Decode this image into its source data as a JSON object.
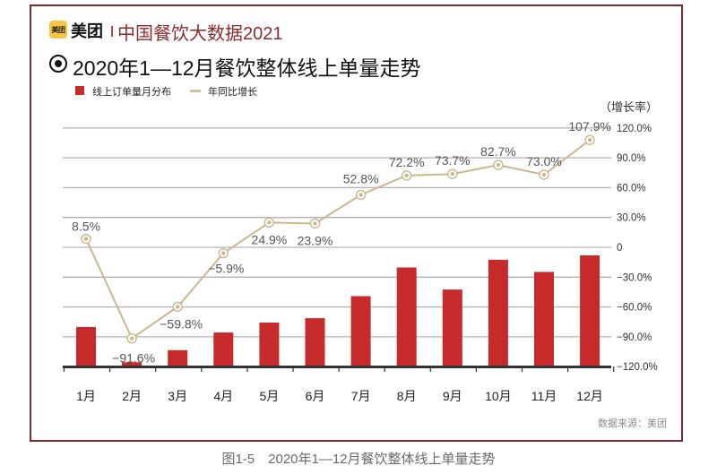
{
  "header": {
    "logo_badge": "美团",
    "brand": "美团",
    "series_title": "中国餐饮大数据2021",
    "accent_color": "#8b2a2f",
    "logo_color": "#f6c543"
  },
  "figure": {
    "title_icon": "radio-dot-icon",
    "title": "2020年1—12月餐饮整体线上单量走势",
    "source": "数据来源：美团",
    "caption": "图1-5　2020年1—12月餐饮整体线上单量走势"
  },
  "chart_data": {
    "type": "bar",
    "title": "2020年1—12月餐饮整体线上单量走势",
    "xlabel": "",
    "ylabel": "",
    "y2label": "（增长率）",
    "categories": [
      "1月",
      "2月",
      "3月",
      "4月",
      "5月",
      "6月",
      "7月",
      "8月",
      "9月",
      "10月",
      "11月",
      "12月"
    ],
    "series": [
      {
        "name": "线上订单量月分布",
        "type": "bar",
        "axis": "none",
        "unit": "relative index (12月 = 100, no scale shown)",
        "values": [
          35,
          3,
          14,
          30,
          39,
          43,
          63,
          89,
          69,
          96,
          85,
          100
        ],
        "color": "#c62a2a"
      },
      {
        "name": "年同比增长",
        "type": "line",
        "axis": "right",
        "unit": "%",
        "values": [
          8.5,
          -91.6,
          -59.8,
          -5.9,
          24.9,
          23.9,
          52.8,
          72.2,
          73.7,
          82.7,
          73.0,
          107.9
        ],
        "labels": [
          "8.5%",
          "−91.6%",
          "−59.8%",
          "−5.9%",
          "24.9%",
          "23.9%",
          "52.8%",
          "72.2%",
          "73.7%",
          "82.7%",
          "73.0%",
          "107.9%"
        ],
        "color": "#c8b88e"
      }
    ],
    "y2lim": [
      -120,
      120
    ],
    "y2ticks": [
      120,
      90,
      60,
      30,
      0,
      -30,
      -60,
      -90,
      -120
    ],
    "y2tick_labels": [
      "120.0%",
      "90.0%",
      "60.0%",
      "30.0%",
      "0",
      "−30.0%",
      "−60.0%",
      "−90.0%",
      "−120.0%"
    ],
    "grid": true,
    "legend": "top-left"
  }
}
